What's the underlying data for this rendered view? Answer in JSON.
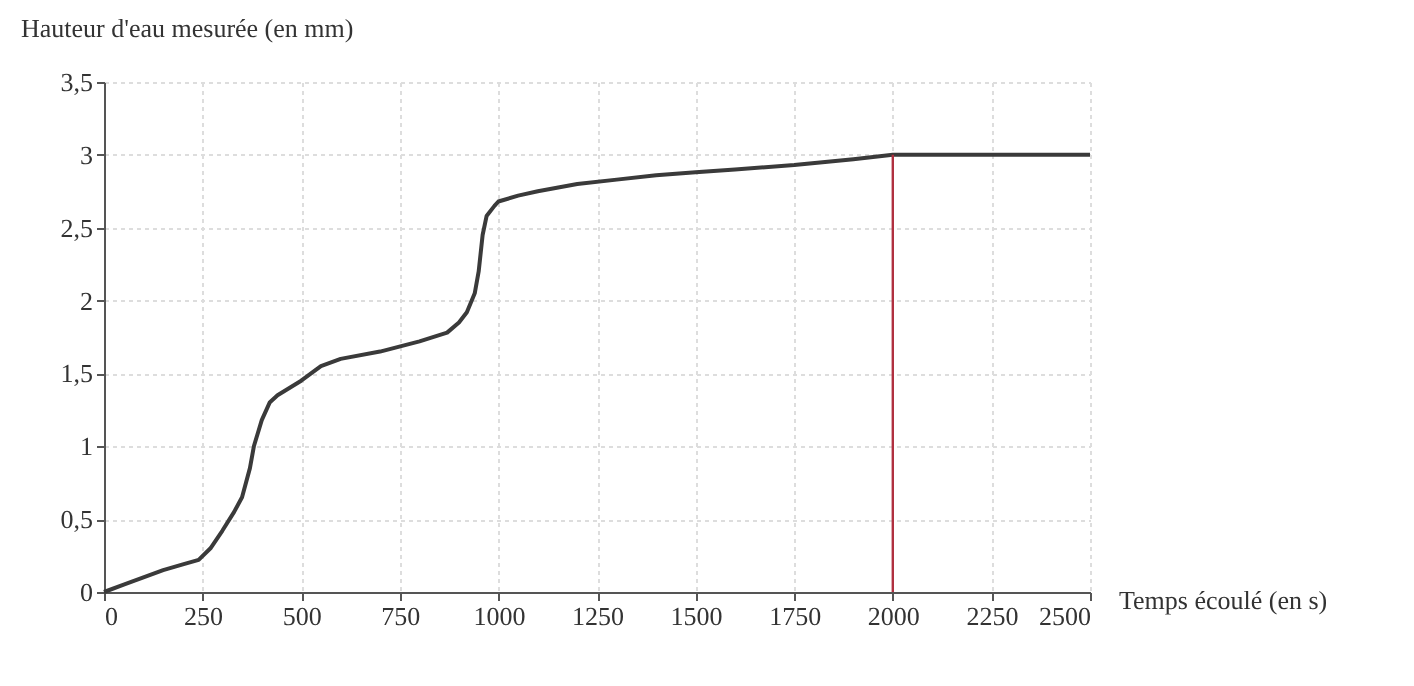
{
  "chart_data": {
    "type": "line",
    "xlabel": "Temps écoulé (en s)",
    "ylabel": "Hauteur d'eau mesurée (en mm)",
    "x": [
      0,
      50,
      100,
      150,
      200,
      240,
      270,
      300,
      330,
      350,
      370,
      380,
      400,
      420,
      440,
      500,
      550,
      600,
      700,
      800,
      870,
      900,
      920,
      940,
      950,
      960,
      970,
      990,
      1000,
      1050,
      1100,
      1200,
      1300,
      1400,
      1500,
      1600,
      1750,
      1900,
      2000,
      2200,
      2500
    ],
    "series": [
      {
        "color": "#3a3a3a",
        "values": [
          0,
          0.05,
          0.1,
          0.15,
          0.19,
          0.22,
          0.3,
          0.42,
          0.55,
          0.65,
          0.85,
          1.0,
          1.18,
          1.3,
          1.35,
          1.45,
          1.55,
          1.6,
          1.65,
          1.72,
          1.78,
          1.85,
          1.92,
          2.05,
          2.2,
          2.45,
          2.58,
          2.65,
          2.68,
          2.72,
          2.75,
          2.8,
          2.83,
          2.86,
          2.88,
          2.9,
          2.93,
          2.97,
          3.0,
          3.0,
          3.0
        ]
      }
    ],
    "xlim": [
      0,
      2500
    ],
    "ylim": [
      0,
      3.5
    ],
    "xticks": [
      0,
      250,
      500,
      750,
      1000,
      1250,
      1500,
      1750,
      2000,
      2250,
      2500
    ],
    "yticks": [
      0,
      {
        "value": 0.5,
        "label": "0,5"
      },
      1,
      {
        "value": 1.5,
        "label": "1,5"
      },
      2,
      {
        "value": 2.5,
        "label": "2,5"
      },
      3,
      {
        "value": 3.5,
        "label": "3,5"
      }
    ],
    "grid": true,
    "marker": "none",
    "line_style": "solid",
    "ref_lines": [
      {
        "axis": "x",
        "value": 2000,
        "color": "#b03040"
      }
    ]
  }
}
